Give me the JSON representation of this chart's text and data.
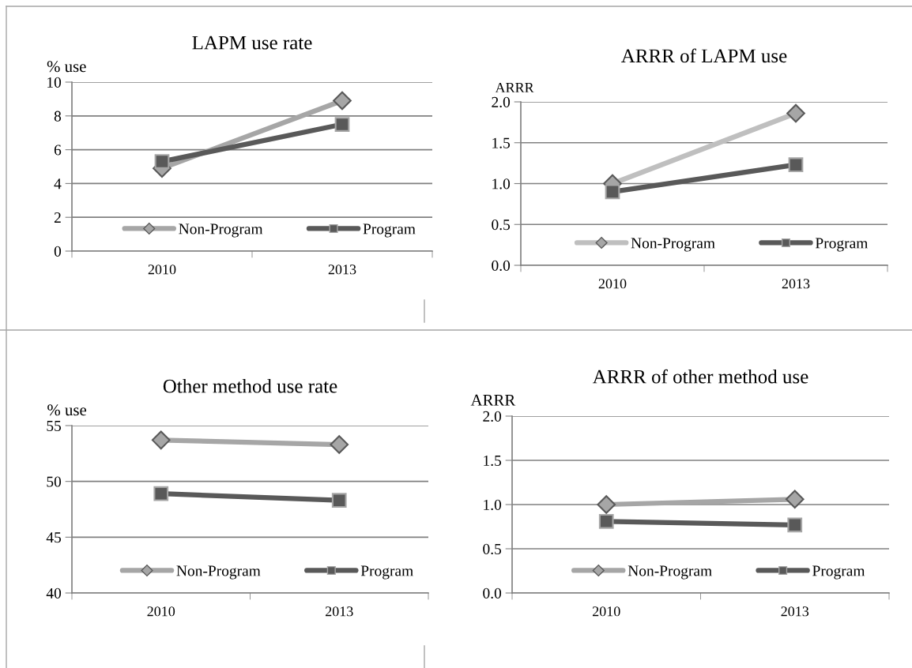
{
  "chart_data": [
    {
      "type": "line",
      "title": "LAPM use rate",
      "ylabel": "% use",
      "categories": [
        "2010",
        "2013"
      ],
      "ylim": [
        0,
        10
      ],
      "yticks": [
        0,
        2,
        4,
        6,
        8,
        10
      ],
      "grid": "y",
      "legend": "bottom",
      "series": [
        {
          "name": "Non-Program",
          "color": "#a6a6a6",
          "marker": "diamond",
          "values": [
            4.9,
            8.9
          ]
        },
        {
          "name": "Program",
          "color": "#595959",
          "marker": "square",
          "values": [
            5.3,
            7.5
          ]
        }
      ]
    },
    {
      "type": "line",
      "title": "ARRR of LAPM use",
      "ylabel": "ARRR",
      "categories": [
        "2010",
        "2013"
      ],
      "ylim": [
        0,
        2
      ],
      "yticks": [
        {
          "value": 0,
          "label": "0.0"
        },
        {
          "value": 0.5,
          "label": "0.5"
        },
        {
          "value": 1,
          "label": "1.0"
        },
        {
          "value": 1.5,
          "label": "1.5"
        },
        {
          "value": 2,
          "label": "2.0"
        }
      ],
      "grid": "y",
      "legend": "bottom",
      "series": [
        {
          "name": "Non-Program",
          "color": "#bfbfbf",
          "marker": "diamond",
          "values": [
            1.0,
            1.86
          ]
        },
        {
          "name": "Program",
          "color": "#595959",
          "marker": "square",
          "values": [
            0.9,
            1.23
          ]
        }
      ]
    },
    {
      "type": "line",
      "title": "Other method use rate",
      "ylabel": "% use",
      "categories": [
        "2010",
        "2013"
      ],
      "ylim": [
        40,
        55
      ],
      "yticks": [
        40,
        45,
        50,
        55
      ],
      "grid": "y",
      "legend": "bottom",
      "series": [
        {
          "name": "Non-Program",
          "color": "#a6a6a6",
          "marker": "diamond",
          "values": [
            53.7,
            53.3
          ]
        },
        {
          "name": "Program",
          "color": "#595959",
          "marker": "square",
          "values": [
            48.9,
            48.3
          ]
        }
      ]
    },
    {
      "type": "line",
      "title": "ARRR of other method use",
      "ylabel": "ARRR",
      "categories": [
        "2010",
        "2013"
      ],
      "ylim": [
        0,
        2
      ],
      "yticks": [
        {
          "value": 0,
          "label": "0.0"
        },
        {
          "value": 0.5,
          "label": "0.5"
        },
        {
          "value": 1,
          "label": "1.0"
        },
        {
          "value": 1.5,
          "label": "1.5"
        },
        {
          "value": 2,
          "label": "2.0"
        }
      ],
      "grid": "y",
      "legend": "bottom",
      "series": [
        {
          "name": "Non-Program",
          "color": "#a6a6a6",
          "marker": "diamond",
          "values": [
            1.0,
            1.06
          ]
        },
        {
          "name": "Program",
          "color": "#595959",
          "marker": "square",
          "values": [
            0.81,
            0.77
          ]
        }
      ]
    }
  ]
}
